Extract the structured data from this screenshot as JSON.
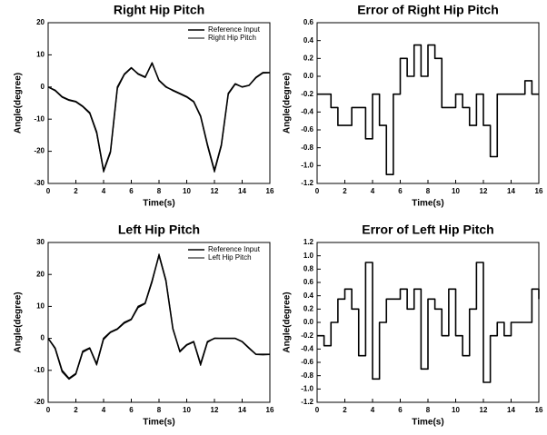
{
  "chart_data": [
    {
      "type": "line",
      "title": "Right Hip Pitch",
      "xlabel": "Time(s)",
      "ylabel": "Angle(degree)",
      "x": [
        0,
        0.5,
        1,
        1.5,
        2,
        2.5,
        3,
        3.5,
        4,
        4.5,
        5,
        5.5,
        6,
        6.5,
        7,
        7.5,
        8,
        8.5,
        9,
        9.5,
        10,
        10.5,
        11,
        11.5,
        12,
        12.5,
        13,
        13.5,
        14,
        14.5,
        15,
        15.5,
        16
      ],
      "series": [
        {
          "name": "Reference Input",
          "color": "#000000",
          "values": [
            0,
            -1,
            -3,
            -4,
            -4.5,
            -6,
            -8,
            -14,
            -26,
            -20,
            0,
            4,
            6,
            4,
            3,
            7.5,
            2,
            0,
            -1,
            -2,
            -3,
            -4.5,
            -9,
            -18,
            -26,
            -18,
            -2,
            1,
            0,
            0.5,
            3,
            4.5,
            4.5
          ]
        },
        {
          "name": "Right Hip Pitch",
          "color": "#000000",
          "values": [
            0,
            -1.2,
            -3.2,
            -4.2,
            -4.7,
            -6.2,
            -8.3,
            -14.5,
            -26.5,
            -20.5,
            -0.5,
            3.8,
            5.8,
            4.2,
            3.2,
            7.2,
            2.2,
            0.2,
            -1.2,
            -2.2,
            -3.2,
            -4.7,
            -9.3,
            -18.5,
            -26.5,
            -18.5,
            -2.3,
            0.8,
            0.1,
            0.6,
            2.8,
            4.3,
            4.4
          ]
        }
      ],
      "xlim": [
        0,
        16
      ],
      "xticks": [
        0,
        2,
        4,
        6,
        8,
        10,
        12,
        14,
        16
      ],
      "ylim": [
        -30,
        20
      ],
      "yticks": [
        -30,
        -20,
        -10,
        0,
        10,
        20
      ],
      "legend": "upper right"
    },
    {
      "type": "line",
      "step": true,
      "title": "Error of Right Hip Pitch",
      "xlabel": "Time(s)",
      "ylabel": "Angle(degree)",
      "x": [
        0,
        0.5,
        1,
        1.5,
        2,
        2.5,
        3,
        3.5,
        4,
        4.5,
        5,
        5.5,
        6,
        6.5,
        7,
        7.5,
        8,
        8.5,
        9,
        9.5,
        10,
        10.5,
        11,
        11.5,
        12,
        12.5,
        13,
        13.5,
        14,
        14.5,
        15,
        15.5,
        16
      ],
      "values": [
        -0.2,
        -0.2,
        -0.35,
        -0.55,
        -0.55,
        -0.35,
        -0.35,
        -0.7,
        -0.2,
        -0.55,
        -1.1,
        -0.2,
        0.2,
        0,
        0.35,
        0,
        0.35,
        0.2,
        -0.35,
        -0.35,
        -0.2,
        -0.35,
        -0.55,
        -0.2,
        -0.55,
        -0.9,
        -0.2,
        -0.2,
        -0.2,
        -0.2,
        -0.05,
        -0.2,
        -0.2
      ],
      "color": "#000000",
      "xlim": [
        0,
        16
      ],
      "xticks": [
        0,
        2,
        4,
        6,
        8,
        10,
        12,
        14,
        16
      ],
      "ylim": [
        -1.2,
        0.6
      ],
      "yticks": [
        {
          "value": -1.2,
          "label": "-1.2"
        },
        {
          "value": -1,
          "label": "-1.0"
        },
        -0.8,
        -0.6,
        -0.4,
        -0.2,
        {
          "value": 0,
          "label": "0.0"
        },
        0.2,
        0.4,
        0.6
      ]
    },
    {
      "type": "line",
      "title": "Left Hip Pitch",
      "xlabel": "Time(s)",
      "ylabel": "Angle(degree)",
      "x": [
        0,
        0.5,
        1,
        1.5,
        2,
        2.5,
        3,
        3.5,
        4,
        4.5,
        5,
        5.5,
        6,
        6.5,
        7,
        7.5,
        8,
        8.5,
        9,
        9.5,
        10,
        10.5,
        11,
        11.5,
        12,
        12.5,
        13,
        13.5,
        14,
        14.5,
        15,
        15.5,
        16
      ],
      "series": [
        {
          "name": "Reference Input",
          "color": "#000000",
          "values": [
            0,
            -3,
            -10,
            -12.5,
            -11,
            -4,
            -3,
            -8,
            0,
            2,
            3,
            5,
            6,
            10,
            11,
            18,
            26,
            18,
            3,
            -4,
            -2,
            -1,
            -8,
            -1,
            0,
            0,
            0,
            0,
            -1,
            -3,
            -5,
            -5,
            -5
          ]
        },
        {
          "name": "Left Hip Pitch",
          "color": "#000000",
          "values": [
            0,
            -3.3,
            -10.5,
            -12.8,
            -11.3,
            -4.4,
            -3.2,
            -8.4,
            -0.4,
            1.8,
            2.8,
            4.7,
            5.8,
            9.6,
            10.8,
            17.5,
            26.4,
            18.4,
            3.3,
            -4.3,
            -2.2,
            -1.2,
            -8.5,
            -1.3,
            0.1,
            0,
            0,
            0,
            -1.1,
            -3.2,
            -5.1,
            -5.2,
            -5.1
          ]
        }
      ],
      "xlim": [
        0,
        16
      ],
      "xticks": [
        0,
        2,
        4,
        6,
        8,
        10,
        12,
        14,
        16
      ],
      "ylim": [
        -20,
        30
      ],
      "yticks": [
        -20,
        -10,
        0,
        10,
        20,
        30
      ],
      "legend": "upper right"
    },
    {
      "type": "line",
      "step": true,
      "title": "Error of Left Hip Pitch",
      "xlabel": "Time(s)",
      "ylabel": "Angle(degree)",
      "x": [
        0,
        0.5,
        1,
        1.5,
        2,
        2.5,
        3,
        3.5,
        4,
        4.5,
        5,
        5.5,
        6,
        6.5,
        7,
        7.5,
        8,
        8.5,
        9,
        9.5,
        10,
        10.5,
        11,
        11.5,
        12,
        12.5,
        13,
        13.5,
        14,
        14.5,
        15,
        15.5,
        16
      ],
      "values": [
        -0.2,
        -0.35,
        0,
        0.35,
        0.5,
        0.2,
        -0.5,
        0.9,
        -0.85,
        0,
        0.35,
        0.35,
        0.5,
        0.2,
        0.5,
        -0.7,
        0.35,
        0.2,
        -0.2,
        0.5,
        -0.2,
        -0.5,
        0.2,
        0.9,
        -0.9,
        -0.2,
        0,
        -0.2,
        0,
        0,
        0,
        0.5,
        0.35
      ],
      "color": "#000000",
      "xlim": [
        0,
        16
      ],
      "xticks": [
        0,
        2,
        4,
        6,
        8,
        10,
        12,
        14,
        16
      ],
      "ylim": [
        -1.2,
        1.2
      ],
      "yticks": [
        {
          "value": -1.2,
          "label": "-1.2"
        },
        {
          "value": -1,
          "label": "-1.0"
        },
        -0.8,
        -0.6,
        -0.4,
        -0.2,
        {
          "value": 0,
          "label": "0.0"
        },
        0.2,
        0.4,
        0.6,
        0.8,
        {
          "value": 1,
          "label": "1.0"
        },
        1.2
      ]
    }
  ]
}
